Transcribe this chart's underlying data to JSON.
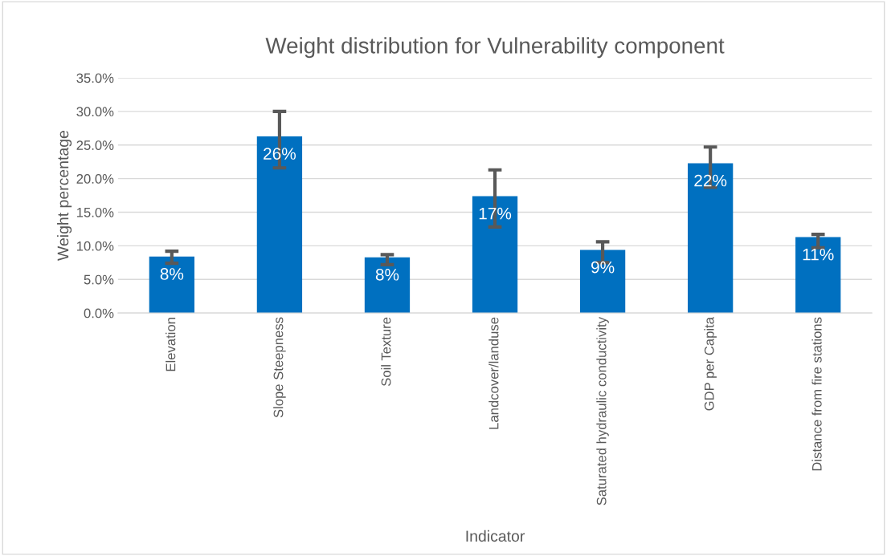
{
  "chart_data": {
    "type": "bar",
    "title": "Weight distribution for Vulnerability component",
    "xlabel": "Indicator",
    "ylabel": "Weight percentage",
    "categories": [
      "Elevation",
      "Slope Steepness",
      "Soil Texture",
      "Landcover/landuse",
      "Saturated hydraulic conductivity",
      "GDP per Capita",
      "Distance from fire stations"
    ],
    "values": [
      8.4,
      26.3,
      8.3,
      17.4,
      9.4,
      22.3,
      11.3
    ],
    "errors": [
      [
        7.4,
        9.2
      ],
      [
        21.6,
        30.0
      ],
      [
        7.2,
        8.7
      ],
      [
        12.8,
        21.3
      ],
      [
        7.5,
        10.6
      ],
      [
        18.7,
        24.7
      ],
      [
        9.7,
        11.7
      ]
    ],
    "value_labels": [
      "8%",
      "26%",
      "8%",
      "17%",
      "9%",
      "22%",
      "11%"
    ],
    "color": "#0070c0",
    "ylim": [
      0,
      35
    ],
    "yticks": [
      {
        "value": 0,
        "label": "0.0%"
      },
      {
        "value": 5,
        "label": "5.0%"
      },
      {
        "value": 10,
        "label": "10.0%"
      },
      {
        "value": 15,
        "label": "15.0%"
      },
      {
        "value": 20,
        "label": "20.0%"
      },
      {
        "value": 25,
        "label": "25.0%"
      },
      {
        "value": 30,
        "label": "30.0%"
      },
      {
        "value": 35,
        "label": "35.0%"
      }
    ],
    "grid": "y",
    "legend": false
  }
}
